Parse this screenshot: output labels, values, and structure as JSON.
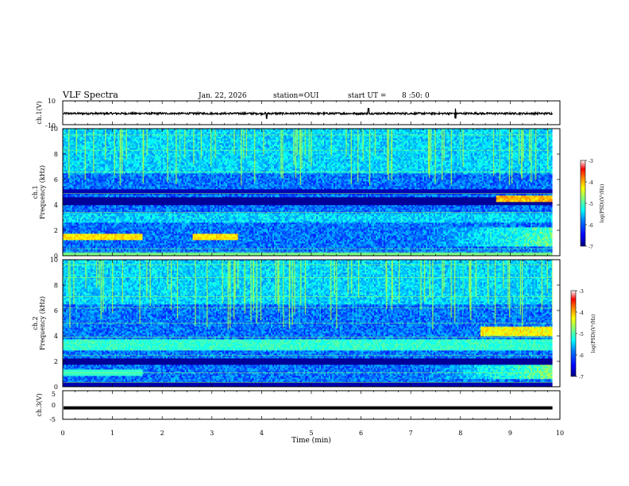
{
  "header": {
    "title": "VLF Spectra",
    "date": "Jan. 22, 2026",
    "station": "station=OUI",
    "start_label": "start  UT =",
    "start_time": "8 :50: 0"
  },
  "chart_data": [
    {
      "id": "ch1-waveform",
      "type": "line",
      "ylabel": "ch.1(V)",
      "ylim": [
        -10,
        10
      ],
      "yticks": [
        10,
        -10
      ],
      "xlim": [
        0,
        10
      ],
      "description_series": "noisy waveform around 0 V, occasional spikes",
      "spikes_at_min": [
        4.1,
        6.15,
        7.9
      ]
    },
    {
      "id": "ch1-spectrogram",
      "type": "heatmap",
      "ylabel": "ch.1\nFrequency (kHz)",
      "ylim": [
        0,
        10
      ],
      "yticks": [
        "0",
        "2",
        "4",
        "6",
        "8",
        "10"
      ],
      "xlim": [
        0,
        9.85
      ],
      "colorbar": {
        "label": "log(PSD)(V²/Hz)",
        "range": [
          -7,
          -3
        ],
        "ticks": [
          "-3",
          "-4",
          "-5",
          "-6",
          "-7"
        ]
      }
    },
    {
      "id": "ch2-spectrogram",
      "type": "heatmap",
      "ylabel": "ch.2\nFrequency (kHz)",
      "ylim": [
        0,
        10
      ],
      "yticks": [
        "0",
        "2",
        "4",
        "6",
        "8",
        "10"
      ],
      "xlim": [
        0,
        9.85
      ],
      "colorbar": {
        "label": "log(PSD)(V²/Hz)",
        "range": [
          -7,
          -3
        ],
        "ticks": [
          "-3",
          "-4",
          "-5",
          "-6",
          "-7"
        ]
      }
    },
    {
      "id": "ch3-waveform",
      "type": "line",
      "ylabel": "ch.3(V)",
      "ylim": [
        -5,
        5
      ],
      "yticks": [
        5,
        0,
        -5
      ],
      "xlim": [
        0,
        10
      ],
      "constant_value": -1
    }
  ],
  "x_axis": {
    "label": "Time (min)",
    "ticks": [
      "0",
      "1",
      "2",
      "3",
      "4",
      "5",
      "6",
      "7",
      "8",
      "9",
      "10"
    ]
  },
  "colors": {
    "colormap": [
      "#00007f",
      "#0000ff",
      "#007fff",
      "#00ffff",
      "#7fff7f",
      "#ffff00",
      "#ff7f00",
      "#ff0000",
      "#7f0000"
    ]
  }
}
